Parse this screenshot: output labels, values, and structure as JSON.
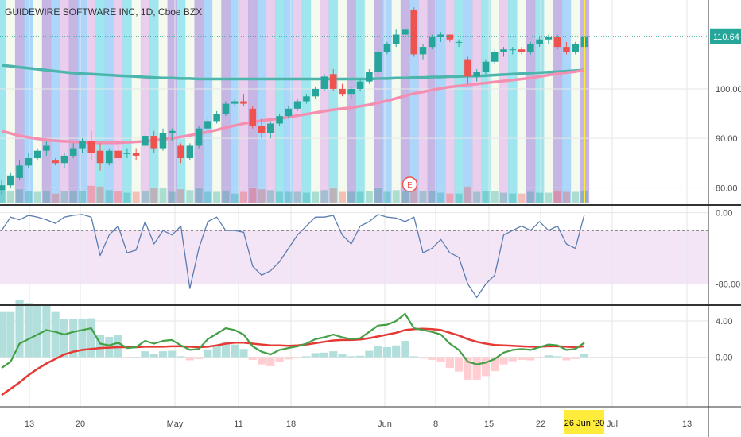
{
  "chart_data": {
    "type": "candlestick",
    "title": "GUIDEWIRE SOFTWARE INC, 1D, Cboe BZX",
    "last_price_label": "110.64",
    "colors": {
      "up": "#26a69a",
      "down": "#ef5350",
      "ma_fast": "#f48fb1",
      "ma_slow": "#4db6ac",
      "osc": "#5b7db1",
      "macd": "#43a047",
      "signal": "#e53935",
      "current": "#ffeb3b"
    },
    "price_axis": {
      "ticks": [
        "100.00",
        "90.00",
        "80.00"
      ],
      "ylim": [
        77,
        118
      ]
    },
    "osc_axis": {
      "ticks": [
        "0.00",
        "-80.00"
      ],
      "ylim": [
        -100,
        5
      ]
    },
    "macd_axis": {
      "ticks": [
        "4.00",
        "0.00"
      ],
      "ylim": [
        -5.5,
        5.5
      ]
    },
    "x_ticks": [
      "13",
      "20",
      "May",
      "11",
      "18",
      "Jun",
      "8",
      "15",
      "22",
      "Jul",
      "13"
    ],
    "current_date_label": "26 Jun '20",
    "earnings_marker": "E",
    "candles": [
      [
        79.5,
        81.5,
        78.5,
        80.5
      ],
      [
        80.5,
        83,
        80,
        82.5
      ],
      [
        82,
        85.5,
        81.5,
        84.5
      ],
      [
        84.5,
        87,
        84,
        86
      ],
      [
        86,
        88,
        85.5,
        87.5
      ],
      [
        87.5,
        89.5,
        86.5,
        88.5
      ],
      [
        85.5,
        86,
        84.5,
        85
      ],
      [
        85,
        87,
        84,
        86.5
      ],
      [
        86.5,
        89,
        86,
        88
      ],
      [
        88,
        90,
        87,
        89.5
      ],
      [
        89.5,
        91.5,
        85.5,
        87
      ],
      [
        87.5,
        89,
        83.5,
        85
      ],
      [
        85,
        88,
        84.5,
        87.5
      ],
      [
        87.5,
        88.5,
        85.5,
        86
      ],
      [
        87,
        88,
        86,
        87
      ],
      [
        87,
        88,
        85.5,
        86.5
      ],
      [
        88.5,
        91,
        88,
        90.5
      ],
      [
        90.5,
        91.5,
        87,
        88
      ],
      [
        88,
        92,
        87.5,
        91
      ],
      [
        91,
        92,
        89.5,
        91.5
      ],
      [
        88.5,
        89,
        85,
        86
      ],
      [
        86,
        89,
        85.5,
        88.5
      ],
      [
        88.5,
        92.5,
        88,
        92
      ],
      [
        92,
        94,
        91.5,
        93.5
      ],
      [
        93.5,
        95.5,
        93,
        95
      ],
      [
        95,
        97.5,
        94.5,
        97
      ],
      [
        97,
        98,
        96.5,
        97.5
      ],
      [
        97.5,
        99,
        96.5,
        97
      ],
      [
        96,
        96.5,
        92,
        92.5
      ],
      [
        92.5,
        94,
        90,
        91
      ],
      [
        91,
        93.5,
        90,
        93
      ],
      [
        93,
        95,
        92.5,
        94.5
      ],
      [
        94.5,
        96.5,
        94,
        96
      ],
      [
        96,
        98,
        95.5,
        97.5
      ],
      [
        97.5,
        99,
        97,
        98.5
      ],
      [
        98.5,
        100.5,
        98,
        100
      ],
      [
        100,
        103,
        99.5,
        102.5
      ],
      [
        103,
        104,
        99.5,
        100
      ],
      [
        100,
        101,
        98.5,
        99
      ],
      [
        99,
        100.5,
        98,
        100
      ],
      [
        100,
        102,
        99.5,
        101.5
      ],
      [
        101.5,
        104,
        101,
        103.5
      ],
      [
        103.5,
        108,
        103,
        107.5
      ],
      [
        107.5,
        109.5,
        107,
        109
      ],
      [
        109,
        112,
        108.5,
        111
      ],
      [
        111,
        113,
        110,
        112
      ],
      [
        116,
        116.5,
        106.5,
        107
      ],
      [
        107,
        109,
        106,
        108.5
      ],
      [
        108.5,
        111,
        108,
        110.5
      ],
      [
        110.5,
        111.5,
        109.5,
        111
      ],
      [
        111,
        111,
        109.5,
        110
      ],
      [
        109.5,
        110,
        108.5,
        109.5
      ],
      [
        106,
        106.5,
        101,
        102.5
      ],
      [
        102.5,
        104,
        101.5,
        103.5
      ],
      [
        103.5,
        106,
        103,
        105.5
      ],
      [
        105.5,
        108,
        105,
        107.5
      ],
      [
        107.5,
        108.5,
        106.5,
        108
      ],
      [
        108,
        108.5,
        107,
        108
      ],
      [
        108,
        108.5,
        107,
        107.5
      ],
      [
        107.5,
        109.5,
        107,
        109
      ],
      [
        109,
        110.5,
        108.5,
        110
      ],
      [
        110,
        111,
        109,
        110.5
      ],
      [
        110.5,
        111,
        108,
        108.5
      ],
      [
        108.5,
        109.5,
        107,
        107.5
      ],
      [
        107.5,
        109.5,
        107,
        109
      ],
      [
        108.5,
        111,
        108,
        110.64
      ]
    ],
    "ma_fast": [
      91.5,
      91,
      90.5,
      90.2,
      89.9,
      89.7,
      89.5,
      89.4,
      89.3,
      89.2,
      89.1,
      89.1,
      89.1,
      89.1,
      89.2,
      89.3,
      89.4,
      89.6,
      89.8,
      90,
      90.3,
      90.6,
      90.9,
      91.3,
      91.7,
      92.2,
      92.6,
      93,
      93.3,
      93.6,
      93.8,
      94,
      94.3,
      94.6,
      94.9,
      95.2,
      95.5,
      95.8,
      96,
      96.2,
      96.5,
      96.8,
      97.2,
      97.6,
      98.1,
      98.6,
      99.1,
      99.4,
      99.8,
      100.1,
      100.4,
      100.6,
      100.8,
      101,
      101.2,
      101.4,
      101.6,
      101.8,
      102,
      102.2,
      102.5,
      102.8,
      103.1,
      103.3,
      103.5,
      103.8
    ],
    "ma_slow": [
      104.8,
      104.6,
      104.4,
      104.2,
      104,
      103.8,
      103.6,
      103.4,
      103.2,
      103.1,
      103,
      102.9,
      102.8,
      102.7,
      102.6,
      102.5,
      102.4,
      102.3,
      102.2,
      102.2,
      102.1,
      102.1,
      102,
      102,
      102,
      102,
      102,
      102,
      102,
      102,
      102,
      102,
      102,
      102,
      102,
      102,
      102,
      102,
      102,
      102,
      102,
      102,
      102.1,
      102.1,
      102.2,
      102.2,
      102.3,
      102.3,
      102.4,
      102.4,
      102.5,
      102.5,
      102.6,
      102.6,
      102.7,
      102.8,
      102.9,
      103,
      103.1,
      103.2,
      103.3,
      103.4,
      103.5,
      103.6,
      103.7,
      103.8
    ],
    "osc": [
      -20,
      -5,
      -8,
      -3,
      -5,
      -8,
      -12,
      -5,
      -3,
      -2,
      -5,
      -48,
      -25,
      -15,
      -45,
      -42,
      -10,
      -35,
      -20,
      -25,
      -15,
      -85,
      -40,
      -10,
      -5,
      -20,
      -20,
      -22,
      -60,
      -70,
      -65,
      -55,
      -40,
      -25,
      -15,
      -5,
      -5,
      -3,
      -25,
      -35,
      -15,
      -10,
      -2,
      -5,
      -6,
      -10,
      -5,
      -45,
      -40,
      -30,
      -45,
      -50,
      -80,
      -95,
      -80,
      -70,
      -25,
      -20,
      -15,
      -20,
      -10,
      -20,
      -15,
      -35,
      -40,
      -2
    ],
    "macd": [
      -1.2,
      -0.5,
      1.5,
      2,
      2.5,
      3,
      2.8,
      2.5,
      2.8,
      3,
      3.2,
      1.5,
      1.3,
      1.6,
      1,
      1.1,
      1.8,
      1.5,
      1.8,
      1.9,
      1.3,
      0.8,
      0.9,
      2,
      2.6,
      3.2,
      3,
      2.5,
      1.2,
      0.6,
      0.3,
      0.8,
      1,
      1.2,
      1.5,
      2,
      2.2,
      2.5,
      2.2,
      2,
      2.1,
      2.8,
      3.5,
      3.6,
      4,
      4.8,
      3.2,
      3,
      2.8,
      2.5,
      1.5,
      0.8,
      -0.5,
      -0.8,
      -0.6,
      -0.2,
      0.5,
      0.8,
      0.9,
      0.8,
      1.1,
      1.4,
      1.3,
      0.8,
      0.9,
      1.6
    ],
    "signal": [
      -4.2,
      -3.5,
      -2.8,
      -2,
      -1.3,
      -0.7,
      -0.2,
      0.3,
      0.6,
      0.8,
      0.9,
      1,
      1.05,
      1.1,
      1.1,
      1.1,
      1.15,
      1.15,
      1.15,
      1.2,
      1.2,
      1.15,
      1.1,
      1.15,
      1.3,
      1.5,
      1.6,
      1.6,
      1.5,
      1.4,
      1.3,
      1.3,
      1.25,
      1.3,
      1.4,
      1.55,
      1.7,
      1.85,
      1.9,
      1.9,
      1.95,
      2.1,
      2.3,
      2.5,
      2.7,
      3,
      3.1,
      3.15,
      3.1,
      3,
      2.7,
      2.4,
      2,
      1.7,
      1.5,
      1.35,
      1.3,
      1.25,
      1.2,
      1.15,
      1.15,
      1.2,
      1.2,
      1.15,
      1.1,
      1.2
    ]
  }
}
